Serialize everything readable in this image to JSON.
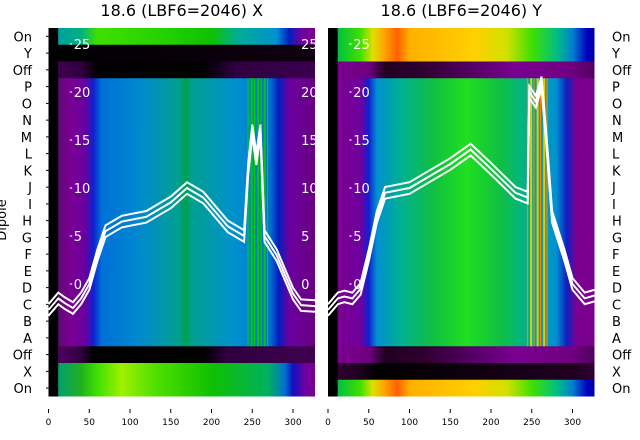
{
  "chart_data": [
    {
      "type": "heatmap",
      "title": "18.6 (LBF6=2046) X",
      "ylabel": "Dipole",
      "row_labels": [
        "On",
        "Y",
        "Off",
        "P",
        "O",
        "N",
        "M",
        "L",
        "K",
        "J",
        "I",
        "H",
        "G",
        "F",
        "E",
        "D",
        "C",
        "B",
        "A",
        "Off",
        "X",
        "On"
      ],
      "x_ticks": [
        0,
        50,
        100,
        150,
        200,
        250,
        300
      ],
      "xlim": [
        0,
        327
      ],
      "overlay_ticks": [
        0,
        5,
        10,
        15,
        20,
        25
      ],
      "overlay_line": {
        "type": "line",
        "x": [
          0,
          12,
          20,
          30,
          40,
          50,
          60,
          70,
          90,
          120,
          150,
          170,
          190,
          220,
          240,
          245,
          250,
          255,
          260,
          265,
          280,
          300,
          310,
          327
        ],
        "y": [
          -2.7,
          -1.5,
          -2,
          -2.5,
          -1.5,
          0,
          3,
          5.5,
          6.5,
          7,
          8.5,
          10,
          9,
          6,
          5,
          12,
          16,
          13,
          16,
          5,
          3,
          -1,
          -2.2,
          -2.3
        ]
      }
    },
    {
      "type": "heatmap",
      "title": "18.6 (LBF6=2046) Y",
      "row_labels": [
        "On",
        "Y",
        "Off",
        "P",
        "O",
        "N",
        "M",
        "L",
        "K",
        "J",
        "I",
        "H",
        "G",
        "F",
        "E",
        "D",
        "C",
        "B",
        "A",
        "Off",
        "X",
        "On"
      ],
      "x_ticks": [
        0,
        50,
        100,
        150,
        200,
        250,
        300
      ],
      "xlim": [
        0,
        327
      ],
      "overlay_ticks": [
        0,
        5,
        10,
        15,
        20,
        25
      ],
      "overlay_line": {
        "type": "line",
        "x": [
          0,
          12,
          20,
          30,
          40,
          50,
          60,
          70,
          100,
          150,
          175,
          200,
          230,
          245,
          247,
          255,
          262,
          268,
          275,
          290,
          300,
          315,
          327
        ],
        "y": [
          -2.7,
          -1.5,
          -1.3,
          -1.5,
          -0.5,
          3,
          7,
          9.5,
          10,
          12.5,
          14,
          12,
          9.5,
          9,
          20,
          19,
          21,
          15,
          7,
          3,
          0,
          -1.5,
          -1.2
        ]
      }
    }
  ]
}
